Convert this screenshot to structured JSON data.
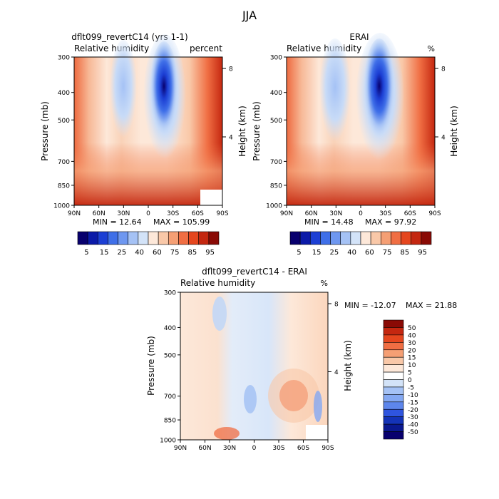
{
  "figure": {
    "title": "JJA"
  },
  "chart_data": [
    {
      "type": "heatmap",
      "title": "dflt099_revertC14 (yrs 1-1)",
      "subtitle_left": "Relative humidity",
      "subtitle_right": "percent",
      "ylabel": "Pressure (mb)",
      "ylabel_right": "Height (km)",
      "x_ticks": [
        "90N",
        "60N",
        "30N",
        "0",
        "30S",
        "60S",
        "90S"
      ],
      "x_range": [
        90,
        -90
      ],
      "y_ticks": [
        "300",
        "400",
        "500",
        "700",
        "850",
        "1000"
      ],
      "y_range": [
        300,
        1000
      ],
      "y_scale": "log",
      "y_right_ticks": [
        "8",
        "4"
      ],
      "min_label": "MIN = 12.64",
      "max_label": "MAX = 105.99",
      "colorbar_labels": [
        "5",
        "15",
        "25",
        "40",
        "60",
        "75",
        "85",
        "95"
      ]
    },
    {
      "type": "heatmap",
      "title": "ERAI",
      "subtitle_left": "Relative humidity",
      "subtitle_right": "%",
      "ylabel": "Pressure (mb)",
      "ylabel_right": "Height (km)",
      "x_ticks": [
        "90N",
        "60N",
        "30N",
        "0",
        "30S",
        "60S",
        "90S"
      ],
      "x_range": [
        90,
        -90
      ],
      "y_ticks": [
        "300",
        "400",
        "500",
        "700",
        "850",
        "1000"
      ],
      "y_range": [
        300,
        1000
      ],
      "y_scale": "log",
      "y_right_ticks": [
        "8",
        "4"
      ],
      "min_label": "MIN = 14.48",
      "max_label": "MAX = 97.92",
      "colorbar_labels": [
        "5",
        "15",
        "25",
        "40",
        "60",
        "75",
        "85",
        "95"
      ]
    },
    {
      "type": "heatmap",
      "title": "dflt099_revertC14 - ERAI",
      "subtitle_left": "Relative humidity",
      "subtitle_right": "%",
      "ylabel": "Pressure (mb)",
      "ylabel_right": "Height (km)",
      "x_ticks": [
        "90N",
        "60N",
        "30N",
        "0",
        "30S",
        "60S",
        "90S"
      ],
      "x_range": [
        90,
        -90
      ],
      "y_ticks": [
        "300",
        "400",
        "500",
        "700",
        "850",
        "1000"
      ],
      "y_range": [
        300,
        1000
      ],
      "y_scale": "log",
      "y_right_ticks": [
        "8",
        "4"
      ],
      "min_label": "MIN = -12.07",
      "max_label": "MAX = 21.88",
      "colorbar_labels": [
        "50",
        "40",
        "30",
        "20",
        "15",
        "10",
        "5",
        "0",
        "-5",
        "-10",
        "-15",
        "-20",
        "-30",
        "-40",
        "-50"
      ]
    }
  ],
  "colors": {
    "rh_scale": [
      "#08006e",
      "#0b1aa8",
      "#1c3fd4",
      "#3f6fe8",
      "#6e97f0",
      "#a5c2f5",
      "#d3e3f8",
      "#fde8d9",
      "#f9c8a8",
      "#f59f74",
      "#f06e43",
      "#e5461e",
      "#c42710",
      "#8a0a05"
    ],
    "diff_scale": [
      "#8a0a05",
      "#c42710",
      "#e5461e",
      "#f06e43",
      "#f59f74",
      "#f9c8a8",
      "#fde8d9",
      "#ffffff",
      "#d3e3f8",
      "#a5c2f5",
      "#84a8f2",
      "#5d86ec",
      "#2f55df",
      "#1433b8",
      "#0a1890",
      "#08006e"
    ]
  }
}
